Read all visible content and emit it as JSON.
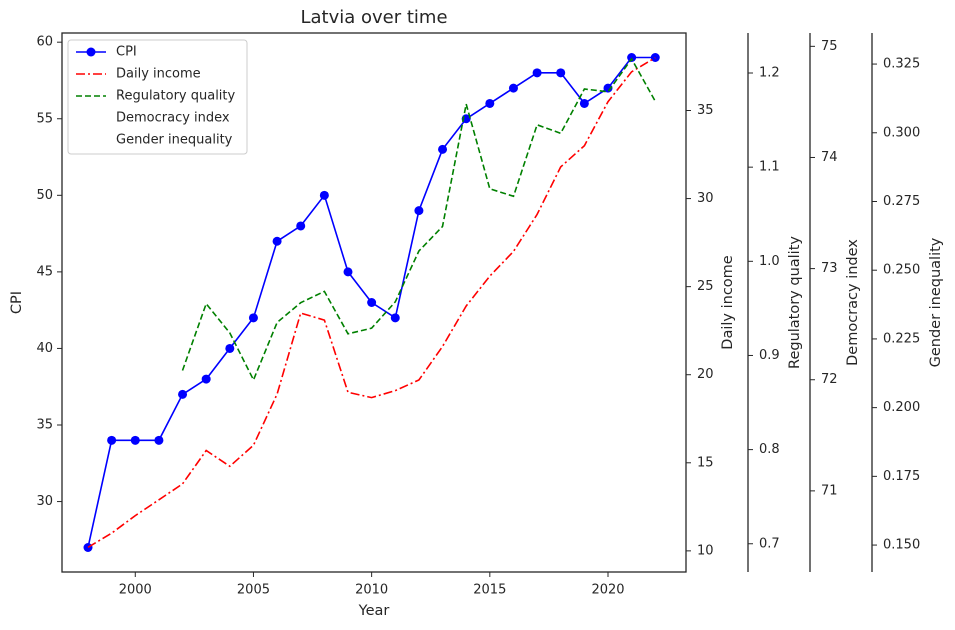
{
  "chart_data": {
    "type": "line",
    "title": "Latvia over time",
    "xlabel": "Year",
    "x": [
      1998,
      1999,
      2000,
      2001,
      2002,
      2003,
      2004,
      2005,
      2006,
      2007,
      2008,
      2009,
      2010,
      2011,
      2012,
      2013,
      2014,
      2015,
      2016,
      2017,
      2018,
      2019,
      2020,
      2021,
      2022
    ],
    "xlim": [
      1996.9,
      2023.3
    ],
    "xticks": [
      2000,
      2005,
      2010,
      2015,
      2020
    ],
    "legend": "upper left",
    "series": [
      {
        "name": "CPI",
        "color": "#0000ff",
        "linestyle": "solid",
        "marker": "circle",
        "ylabel": "CPI",
        "ylim": [
          25.4,
          60.6
        ],
        "yticks": [
          30,
          35,
          40,
          45,
          50,
          55,
          60
        ],
        "values": [
          27,
          34,
          34,
          34,
          37,
          38,
          40,
          42,
          47,
          48,
          50,
          45,
          43,
          42,
          49,
          53,
          55,
          56,
          57,
          58,
          58,
          56,
          57,
          59,
          59
        ]
      },
      {
        "name": "Daily income",
        "color": "#ff0000",
        "linestyle": "dashdot",
        "ylabel": "Daily income",
        "ylim": [
          8.8,
          39.4
        ],
        "yticks": [
          10,
          15,
          20,
          25,
          30,
          35
        ],
        "values": [
          10.2,
          11.0,
          12.0,
          12.9,
          13.8,
          15.7,
          14.8,
          16.0,
          18.9,
          23.5,
          23.1,
          19.0,
          18.7,
          19.1,
          19.7,
          21.6,
          23.9,
          25.6,
          27.0,
          29.1,
          31.8,
          33.0,
          35.5,
          37.2,
          38.0
        ]
      },
      {
        "name": "Regulatory quality",
        "color": "#008000",
        "linestyle": "dashed",
        "ylabel": "Regulatory quality",
        "ylim": [
          0.67,
          1.2425
        ],
        "yticks": [
          0.7,
          0.8,
          0.9,
          {
            "value": 1.0,
            "label": "1.0"
          },
          1.1,
          1.2
        ],
        "values": [
          null,
          null,
          null,
          null,
          0.884,
          0.955,
          0.924,
          0.874,
          0.935,
          0.956,
          0.968,
          0.923,
          0.929,
          0.957,
          1.011,
          1.037,
          1.167,
          1.077,
          1.069,
          1.145,
          1.136,
          1.183,
          1.18,
          1.215,
          1.17
        ]
      },
      {
        "name": "Democracy index",
        "color": "#ffffff",
        "linestyle": "none",
        "ylabel": "Democracy index",
        "ylim": [
          70.27,
          75.12
        ],
        "yticks": [
          71,
          72,
          73,
          74,
          75
        ],
        "values": [
          null,
          null,
          null,
          null,
          null,
          null,
          null,
          null,
          null,
          null,
          null,
          null,
          null,
          null,
          null,
          null,
          null,
          null,
          null,
          null,
          null,
          null,
          null,
          null,
          null
        ]
      },
      {
        "name": "Gender inequality",
        "color": "#ffffff",
        "linestyle": "none",
        "ylabel": "Gender inequality",
        "ylim": [
          0.1402,
          0.3363
        ],
        "yticks": [
          {
            "value": 0.15,
            "label": "0.150"
          },
          {
            "value": 0.175,
            "label": "0.175"
          },
          {
            "value": 0.2,
            "label": "0.200"
          },
          {
            "value": 0.225,
            "label": "0.225"
          },
          {
            "value": 0.25,
            "label": "0.250"
          },
          {
            "value": 0.275,
            "label": "0.275"
          },
          {
            "value": 0.3,
            "label": "0.300"
          },
          {
            "value": 0.325,
            "label": "0.325"
          }
        ],
        "values": [
          null,
          null,
          null,
          null,
          null,
          null,
          null,
          null,
          null,
          null,
          null,
          null,
          null,
          null,
          null,
          null,
          null,
          null,
          null,
          null,
          null,
          null,
          null,
          null,
          null
        ]
      }
    ]
  }
}
